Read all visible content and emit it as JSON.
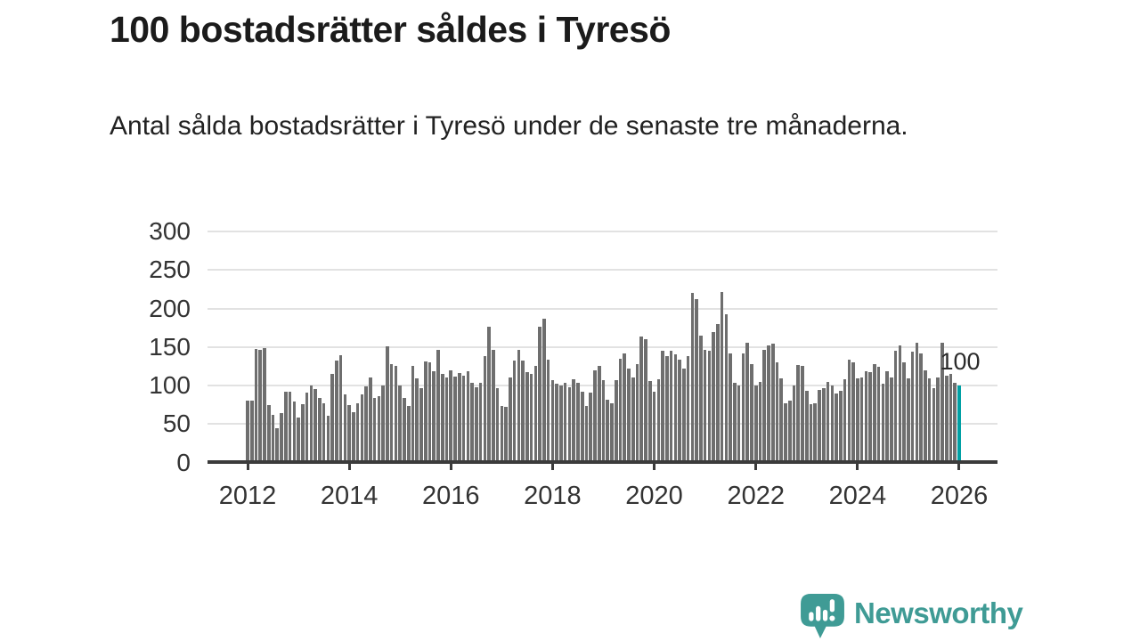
{
  "header": {
    "title": "100 bostadsrätter såldes i Tyresö",
    "subtitle": "Antal sålda bostadsrätter i Tyresö under de senaste tre månaderna."
  },
  "chart_data": {
    "type": "bar",
    "title": "100 bostadsrätter såldes i Tyresö",
    "subtitle": "Antal sålda bostadsrätter i Tyresö under de senaste tre månaderna.",
    "x_unit": "month",
    "x_start": "2012-01",
    "x_end": "2026-01",
    "values": [
      80,
      80,
      148,
      146,
      149,
      75,
      62,
      44,
      64,
      92,
      92,
      79,
      58,
      76,
      91,
      100,
      95,
      84,
      77,
      61,
      115,
      132,
      139,
      88,
      75,
      65,
      77,
      89,
      99,
      111,
      84,
      86,
      100,
      151,
      128,
      125,
      100,
      84,
      73,
      126,
      109,
      97,
      131,
      130,
      118,
      146,
      115,
      110,
      120,
      112,
      116,
      113,
      118,
      104,
      98,
      104,
      138,
      176,
      146,
      97,
      73,
      72,
      111,
      132,
      146,
      132,
      117,
      115,
      126,
      176,
      187,
      133,
      107,
      102,
      100,
      103,
      98,
      108,
      103,
      92,
      74,
      91,
      120,
      125,
      107,
      81,
      77,
      107,
      135,
      142,
      122,
      111,
      128,
      164,
      160,
      106,
      92,
      108,
      145,
      138,
      145,
      141,
      133,
      122,
      138,
      220,
      212,
      165,
      146,
      145,
      170,
      180,
      222,
      192,
      142,
      103,
      100,
      142,
      156,
      128,
      100,
      105,
      146,
      152,
      154,
      130,
      109,
      77,
      80,
      100,
      127,
      125,
      93,
      76,
      77,
      94,
      96,
      105,
      100,
      90,
      93,
      108,
      134,
      130,
      109,
      110,
      119,
      117,
      128,
      124,
      102,
      119,
      111,
      145,
      152,
      130,
      109,
      144,
      156,
      142,
      120,
      109,
      97,
      111,
      155,
      113,
      115,
      103,
      100
    ],
    "highlight_index_from_end": 1,
    "highlight_value": 100,
    "highlight_label": "100",
    "yticks": [
      0,
      50,
      100,
      150,
      200,
      250,
      300
    ],
    "ylim": [
      0,
      300
    ],
    "xticks": [
      2012,
      2014,
      2016,
      2018,
      2020,
      2022,
      2024,
      2026
    ],
    "grid": "horizontal",
    "legend": "none",
    "colors": {
      "bar": "#6e6e6e",
      "highlight_bar": "#00a0a4",
      "gridline": "#e2e2e2",
      "axis": "#3b3b3b",
      "tick_text": "#333333"
    }
  },
  "footer": {
    "brand": "Newsworthy",
    "brand_color": "#3f9b95",
    "logo_icon": "chart-speech-bubble-icon"
  }
}
